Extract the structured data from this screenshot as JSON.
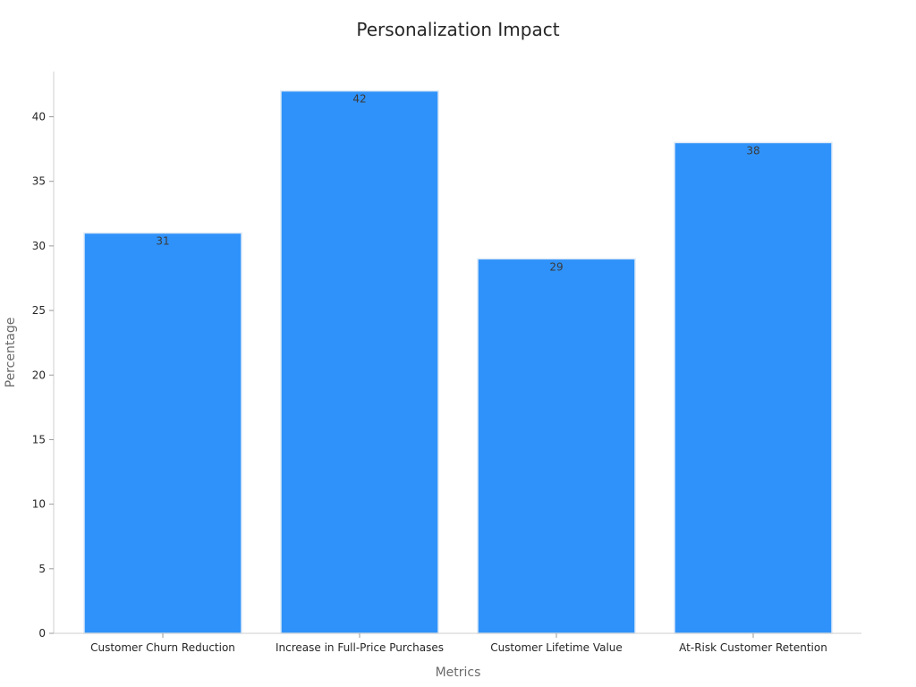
{
  "chart_data": {
    "type": "bar",
    "title": "Personalization Impact",
    "xlabel": "Metrics",
    "ylabel": "Percentage",
    "categories": [
      "Customer Churn Reduction",
      "Increase in Full-Price Purchases",
      "Customer Lifetime Value",
      "At-Risk Customer Retention"
    ],
    "values": [
      31,
      42,
      29,
      38
    ],
    "ylim": [
      0,
      43.5
    ],
    "yticks": [
      0,
      5,
      10,
      15,
      20,
      25,
      30,
      35,
      40
    ],
    "grid": false,
    "legend": "none",
    "bar_color": "#2f92fa",
    "bar_edge_color": "#dce9f7"
  }
}
